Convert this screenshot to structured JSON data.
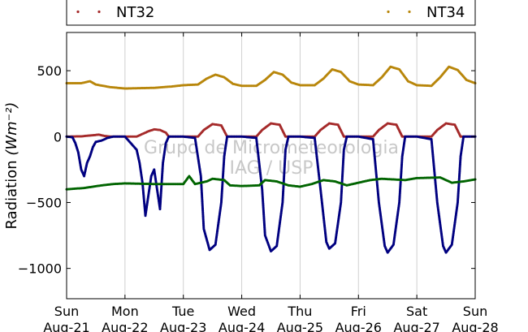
{
  "chart_data": {
    "type": "scatter",
    "title": "",
    "xlabel": "",
    "ylabel": "Radiation",
    "yunit": "(Wm⁻²)",
    "ylim": [
      -1230,
      790
    ],
    "xlim": [
      0,
      7
    ],
    "yticks": [
      500,
      0,
      -500,
      -1000
    ],
    "ytick_labels": [
      "500",
      "0",
      "−500",
      "−1000"
    ],
    "x_ticks": [
      {
        "x": 0,
        "day": "Sun",
        "date": "Aug-21"
      },
      {
        "x": 1,
        "day": "Mon",
        "date": "Aug-22"
      },
      {
        "x": 2,
        "day": "Tue",
        "date": "Aug-23"
      },
      {
        "x": 3,
        "day": "Wed",
        "date": "Aug-24"
      },
      {
        "x": 4,
        "day": "Thu",
        "date": "Aug-25"
      },
      {
        "x": 5,
        "day": "Fri",
        "date": "Aug-26"
      },
      {
        "x": 6,
        "day": "Sat",
        "date": "Aug-27"
      },
      {
        "x": 7,
        "day": "Sun",
        "date": "Aug-28"
      }
    ],
    "grid": "vertical",
    "watermark": [
      "Grupo de Micrometeorologia",
      "IAG / USP"
    ],
    "legend": {
      "placement": "top",
      "entries": [
        "NT32",
        "NT34"
      ]
    },
    "series": [
      {
        "name": "NT32",
        "color": "#a52a2a",
        "points": [
          [
            0,
            0
          ],
          [
            0.25,
            2
          ],
          [
            0.45,
            10
          ],
          [
            0.55,
            15
          ],
          [
            0.65,
            5
          ],
          [
            0.75,
            0
          ],
          [
            1,
            0
          ],
          [
            1.2,
            0
          ],
          [
            1.3,
            20
          ],
          [
            1.4,
            40
          ],
          [
            1.5,
            55
          ],
          [
            1.6,
            50
          ],
          [
            1.7,
            30
          ],
          [
            1.75,
            0
          ],
          [
            2,
            0
          ],
          [
            2.25,
            0
          ],
          [
            2.35,
            50
          ],
          [
            2.5,
            95
          ],
          [
            2.65,
            85
          ],
          [
            2.75,
            0
          ],
          [
            3,
            0
          ],
          [
            3.25,
            0
          ],
          [
            3.35,
            50
          ],
          [
            3.5,
            100
          ],
          [
            3.65,
            90
          ],
          [
            3.75,
            0
          ],
          [
            4,
            0
          ],
          [
            4.25,
            0
          ],
          [
            4.35,
            50
          ],
          [
            4.5,
            100
          ],
          [
            4.65,
            90
          ],
          [
            4.75,
            0
          ],
          [
            5,
            0
          ],
          [
            5.25,
            0
          ],
          [
            5.35,
            50
          ],
          [
            5.5,
            100
          ],
          [
            5.65,
            90
          ],
          [
            5.75,
            0
          ],
          [
            6,
            0
          ],
          [
            6.25,
            0
          ],
          [
            6.35,
            50
          ],
          [
            6.5,
            100
          ],
          [
            6.65,
            90
          ],
          [
            6.75,
            0
          ],
          [
            7,
            0
          ]
        ]
      },
      {
        "name": "NT34",
        "color": "#b8860b",
        "points": [
          [
            0,
            405
          ],
          [
            0.25,
            405
          ],
          [
            0.4,
            420
          ],
          [
            0.5,
            395
          ],
          [
            0.75,
            375
          ],
          [
            1,
            365
          ],
          [
            1.5,
            370
          ],
          [
            1.8,
            380
          ],
          [
            2,
            390
          ],
          [
            2.25,
            395
          ],
          [
            2.4,
            440
          ],
          [
            2.55,
            470
          ],
          [
            2.7,
            450
          ],
          [
            2.85,
            400
          ],
          [
            3,
            385
          ],
          [
            3.25,
            385
          ],
          [
            3.4,
            430
          ],
          [
            3.55,
            490
          ],
          [
            3.7,
            470
          ],
          [
            3.85,
            410
          ],
          [
            4,
            390
          ],
          [
            4.25,
            390
          ],
          [
            4.4,
            440
          ],
          [
            4.55,
            510
          ],
          [
            4.7,
            490
          ],
          [
            4.85,
            420
          ],
          [
            5,
            395
          ],
          [
            5.25,
            390
          ],
          [
            5.4,
            450
          ],
          [
            5.55,
            530
          ],
          [
            5.7,
            510
          ],
          [
            5.85,
            420
          ],
          [
            6,
            390
          ],
          [
            6.25,
            385
          ],
          [
            6.4,
            450
          ],
          [
            6.55,
            530
          ],
          [
            6.7,
            505
          ],
          [
            6.85,
            430
          ],
          [
            7,
            405
          ]
        ]
      },
      {
        "color": "#000080",
        "points": [
          [
            0,
            0
          ],
          [
            0.1,
            -5
          ],
          [
            0.15,
            -50
          ],
          [
            0.2,
            -120
          ],
          [
            0.25,
            -250
          ],
          [
            0.3,
            -300
          ],
          [
            0.35,
            -200
          ],
          [
            0.4,
            -150
          ],
          [
            0.45,
            -80
          ],
          [
            0.5,
            -40
          ],
          [
            0.6,
            -30
          ],
          [
            0.7,
            -10
          ],
          [
            0.8,
            0
          ],
          [
            1,
            0
          ],
          [
            1.2,
            -100
          ],
          [
            1.25,
            -200
          ],
          [
            1.3,
            -350
          ],
          [
            1.35,
            -600
          ],
          [
            1.4,
            -450
          ],
          [
            1.45,
            -300
          ],
          [
            1.5,
            -250
          ],
          [
            1.55,
            -400
          ],
          [
            1.6,
            -550
          ],
          [
            1.65,
            -200
          ],
          [
            1.7,
            -50
          ],
          [
            1.75,
            0
          ],
          [
            2,
            0
          ],
          [
            2.2,
            -10
          ],
          [
            2.3,
            -300
          ],
          [
            2.35,
            -700
          ],
          [
            2.45,
            -860
          ],
          [
            2.55,
            -820
          ],
          [
            2.65,
            -500
          ],
          [
            2.7,
            -150
          ],
          [
            2.75,
            0
          ],
          [
            3,
            0
          ],
          [
            3.25,
            -10
          ],
          [
            3.35,
            -400
          ],
          [
            3.4,
            -750
          ],
          [
            3.5,
            -870
          ],
          [
            3.6,
            -830
          ],
          [
            3.7,
            -500
          ],
          [
            3.75,
            -100
          ],
          [
            3.8,
            0
          ],
          [
            4,
            0
          ],
          [
            4.25,
            -10
          ],
          [
            4.35,
            -400
          ],
          [
            4.45,
            -800
          ],
          [
            4.5,
            -850
          ],
          [
            4.6,
            -810
          ],
          [
            4.7,
            -500
          ],
          [
            4.75,
            -100
          ],
          [
            4.8,
            0
          ],
          [
            5,
            0
          ],
          [
            5.25,
            -20
          ],
          [
            5.35,
            -500
          ],
          [
            5.45,
            -830
          ],
          [
            5.5,
            -880
          ],
          [
            5.6,
            -820
          ],
          [
            5.7,
            -500
          ],
          [
            5.75,
            -150
          ],
          [
            5.8,
            0
          ],
          [
            6,
            0
          ],
          [
            6.25,
            -20
          ],
          [
            6.35,
            -500
          ],
          [
            6.45,
            -830
          ],
          [
            6.5,
            -880
          ],
          [
            6.6,
            -820
          ],
          [
            6.7,
            -500
          ],
          [
            6.75,
            -150
          ],
          [
            6.8,
            0
          ],
          [
            7,
            0
          ]
        ]
      },
      {
        "color": "#006400",
        "points": [
          [
            0,
            -400
          ],
          [
            0.3,
            -390
          ],
          [
            0.6,
            -370
          ],
          [
            0.8,
            -360
          ],
          [
            1,
            -355
          ],
          [
            1.5,
            -360
          ],
          [
            1.9,
            -360
          ],
          [
            2,
            -360
          ],
          [
            2.1,
            -300
          ],
          [
            2.2,
            -360
          ],
          [
            2.4,
            -340
          ],
          [
            2.5,
            -320
          ],
          [
            2.7,
            -330
          ],
          [
            2.8,
            -370
          ],
          [
            3,
            -375
          ],
          [
            3.3,
            -370
          ],
          [
            3.4,
            -330
          ],
          [
            3.6,
            -340
          ],
          [
            3.8,
            -370
          ],
          [
            4,
            -380
          ],
          [
            4.2,
            -360
          ],
          [
            4.4,
            -330
          ],
          [
            4.6,
            -340
          ],
          [
            4.8,
            -370
          ],
          [
            5,
            -350
          ],
          [
            5.2,
            -330
          ],
          [
            5.4,
            -320
          ],
          [
            5.6,
            -325
          ],
          [
            5.8,
            -330
          ],
          [
            6,
            -315
          ],
          [
            6.4,
            -310
          ],
          [
            6.6,
            -350
          ],
          [
            6.8,
            -340
          ],
          [
            7,
            -325
          ]
        ]
      }
    ]
  }
}
